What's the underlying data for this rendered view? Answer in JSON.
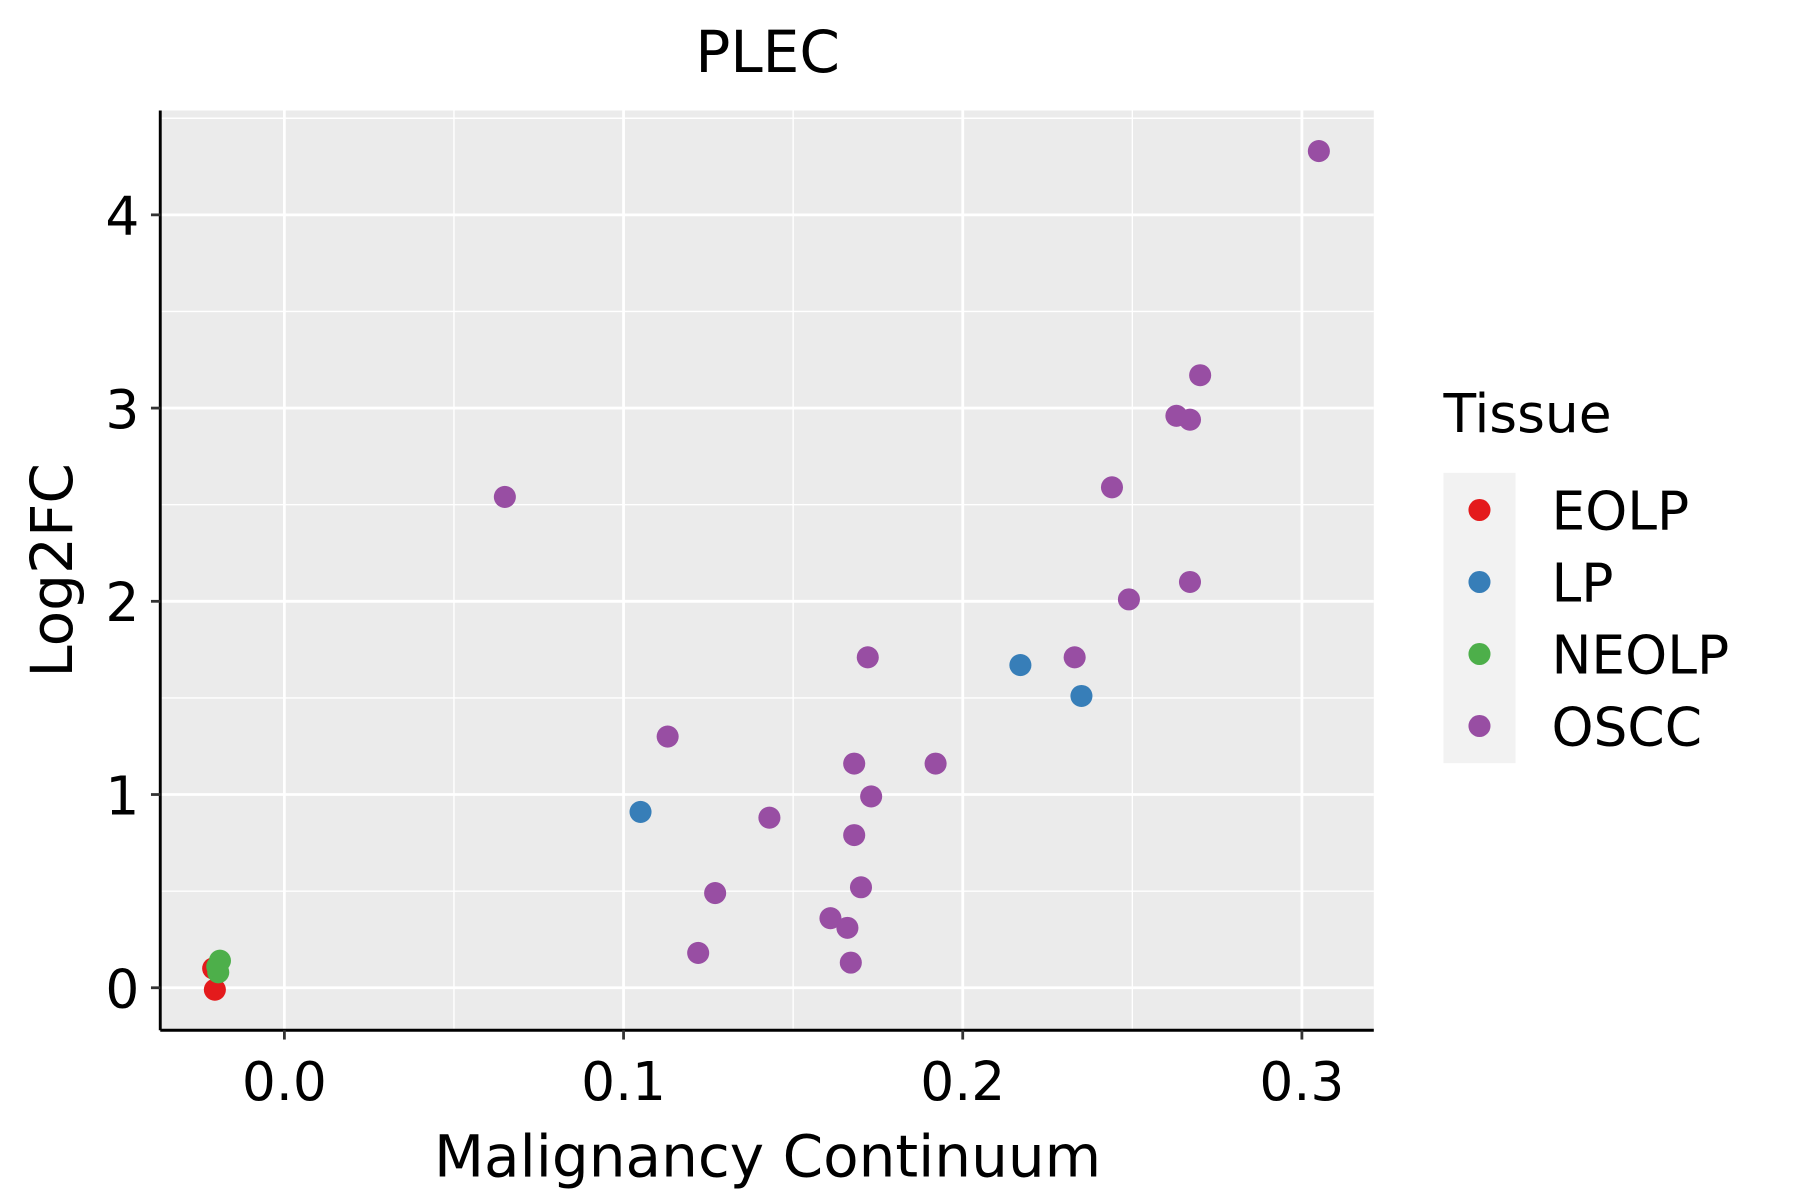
{
  "chart_data": {
    "type": "scatter",
    "title": "PLEC",
    "xlabel": "Malignancy Continuum",
    "ylabel": "Log2FC",
    "xlim": [
      -0.0366,
      0.3212
    ],
    "ylim": [
      -0.22,
      4.54
    ],
    "xticks": [
      0.0,
      0.1,
      0.2,
      0.3
    ],
    "xtick_labels": [
      "0.0",
      "0.1",
      "0.2",
      "0.3"
    ],
    "yticks": [
      0,
      1,
      2,
      3,
      4
    ],
    "ytick_labels": [
      "0",
      "1",
      "2",
      "3",
      "4"
    ],
    "grid": true,
    "legend": {
      "title": "Tissue",
      "placement": "right"
    },
    "series": [
      {
        "name": "EOLP",
        "color": "#E41A1C",
        "points": [
          [
            -0.0205,
            -0.01
          ],
          [
            -0.021,
            0.1
          ]
        ]
      },
      {
        "name": "LP",
        "color": "#377EB8",
        "points": [
          [
            0.105,
            0.91
          ],
          [
            0.217,
            1.67
          ],
          [
            0.235,
            1.51
          ]
        ]
      },
      {
        "name": "NEOLP",
        "color": "#4DAF4A",
        "points": [
          [
            -0.019,
            0.14
          ],
          [
            -0.0195,
            0.08
          ],
          [
            -0.0198,
            0.11
          ]
        ]
      },
      {
        "name": "OSCC",
        "color": "#984EA3",
        "points": [
          [
            0.305,
            4.33
          ],
          [
            0.27,
            3.17
          ],
          [
            0.263,
            2.96
          ],
          [
            0.267,
            2.94
          ],
          [
            0.065,
            2.54
          ],
          [
            0.244,
            2.59
          ],
          [
            0.267,
            2.1
          ],
          [
            0.249,
            2.01
          ],
          [
            0.172,
            1.71
          ],
          [
            0.233,
            1.71
          ],
          [
            0.113,
            1.3
          ],
          [
            0.168,
            1.16
          ],
          [
            0.192,
            1.16
          ],
          [
            0.173,
            0.99
          ],
          [
            0.143,
            0.88
          ],
          [
            0.168,
            0.79
          ],
          [
            0.127,
            0.49
          ],
          [
            0.17,
            0.52
          ],
          [
            0.161,
            0.36
          ],
          [
            0.166,
            0.31
          ],
          [
            0.122,
            0.18
          ],
          [
            0.167,
            0.13
          ]
        ]
      }
    ]
  }
}
